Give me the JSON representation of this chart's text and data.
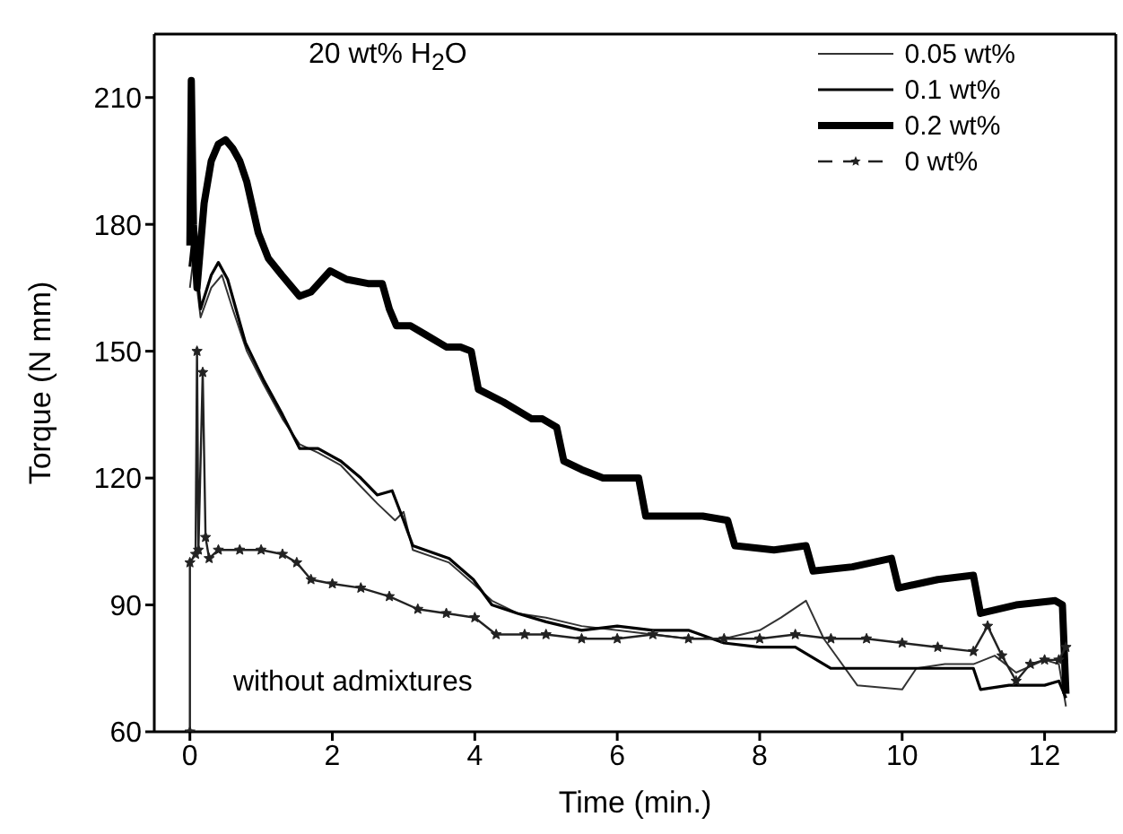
{
  "chart_data": {
    "type": "line",
    "xlabel": "Time (min.)",
    "ylabel": "Torque (N mm)",
    "xlim": [
      -0.5,
      13
    ],
    "xticks": [
      0,
      2,
      4,
      6,
      8,
      10,
      12
    ],
    "ylim": [
      60,
      225
    ],
    "yticks": [
      60,
      90,
      120,
      150,
      180,
      210
    ],
    "grid": false,
    "legend": "top right",
    "annotations": [
      "20 wt% H$_{2}$O",
      "without admixtures"
    ],
    "series": [
      {
        "name": "0.05 wt%",
        "color": "#333333",
        "marker": "none",
        "x": [
          0,
          0.05,
          0.15,
          0.3,
          0.45,
          0.6,
          0.8,
          1.04,
          1.3,
          1.54,
          1.8,
          2.12,
          2.4,
          2.63,
          2.88,
          3.0,
          3.13,
          3.64,
          3.98,
          4.24,
          4.6,
          5.0,
          5.5,
          6.0,
          6.5,
          7.0,
          7.5,
          8.0,
          8.3,
          8.65,
          8.9,
          9.37,
          10.0,
          10.2,
          10.6,
          11.0,
          11.3,
          11.6,
          12.0,
          12.2,
          12.3
        ],
        "values": [
          165,
          172,
          158,
          165,
          168,
          160,
          150,
          142,
          134,
          128,
          126,
          123,
          118,
          114,
          110,
          112,
          103,
          100,
          95,
          91,
          88,
          87,
          85,
          84,
          83,
          82,
          82,
          84,
          87,
          91,
          82,
          71,
          70,
          75,
          76,
          76,
          78,
          74,
          77,
          76,
          66
        ]
      },
      {
        "name": "0.1 wt%",
        "color": "#000000",
        "marker": "none",
        "x": [
          0,
          0.05,
          0.15,
          0.3,
          0.4,
          0.53,
          0.78,
          1.04,
          1.3,
          1.54,
          1.8,
          2.12,
          2.4,
          2.63,
          2.84,
          3.0,
          3.13,
          3.64,
          3.98,
          4.24,
          4.6,
          5.0,
          5.5,
          6.0,
          6.5,
          7.0,
          7.5,
          8.0,
          8.5,
          9.0,
          9.5,
          10.0,
          10.5,
          11.0,
          11.1,
          11.5,
          12.0,
          12.2,
          12.3
        ],
        "values": [
          170,
          178,
          160,
          168,
          171,
          167,
          152,
          143,
          135,
          127,
          127,
          124,
          120,
          116,
          117,
          110,
          104,
          101,
          96,
          90,
          88,
          86,
          84,
          85,
          84,
          84,
          81,
          80,
          80,
          75,
          75,
          75,
          75,
          75,
          70,
          71,
          71,
          72,
          68
        ]
      },
      {
        "name": "0.2 wt%",
        "color": "#000000",
        "marker": "none",
        "x": [
          0,
          0.02,
          0.05,
          0.1,
          0.2,
          0.3,
          0.4,
          0.5,
          0.6,
          0.7,
          0.8,
          0.96,
          1.1,
          1.29,
          1.54,
          1.7,
          1.97,
          2.2,
          2.5,
          2.7,
          2.8,
          2.9,
          3.1,
          3.3,
          3.6,
          3.8,
          3.95,
          4.05,
          4.4,
          4.8,
          4.95,
          5.15,
          5.25,
          5.5,
          5.8,
          6.3,
          6.4,
          6.8,
          7.2,
          7.55,
          7.65,
          8.2,
          8.65,
          8.75,
          9.3,
          9.85,
          9.95,
          10.5,
          11.0,
          11.1,
          11.6,
          12.15,
          12.25,
          12.3
        ],
        "values": [
          175,
          214,
          180,
          165,
          185,
          195,
          199,
          200,
          198,
          195,
          190,
          178,
          172,
          168,
          163,
          164,
          169,
          167,
          166,
          166,
          160,
          156,
          156,
          154,
          151,
          151,
          150,
          141,
          138,
          134,
          134,
          132,
          124,
          122,
          120,
          120,
          111,
          111,
          111,
          110,
          104,
          103,
          104,
          98,
          99,
          101,
          94,
          96,
          97,
          88,
          90,
          91,
          90,
          69
        ]
      },
      {
        "name": "0 wt%",
        "color": "#222222",
        "marker": "star",
        "x": [
          0,
          0,
          0.08,
          0.1,
          0.12,
          0.18,
          0.22,
          0.27,
          0.4,
          0.7,
          1.0,
          1.3,
          1.5,
          1.7,
          2.0,
          2.4,
          2.8,
          3.2,
          3.6,
          4.0,
          4.3,
          4.7,
          5.0,
          5.5,
          6.0,
          6.5,
          7.0,
          7.5,
          8.0,
          8.5,
          9.0,
          9.5,
          10.0,
          10.5,
          11.0,
          11.2,
          11.4,
          11.6,
          11.8,
          12.0,
          12.2,
          12.3
        ],
        "values": [
          60,
          100,
          102,
          150,
          103,
          145,
          106,
          101,
          103,
          103,
          103,
          102,
          100,
          96,
          95,
          94,
          92,
          89,
          88,
          87,
          83,
          83,
          83,
          82,
          82,
          83,
          82,
          82,
          82,
          83,
          82,
          82,
          81,
          80,
          79,
          85,
          78,
          72,
          76,
          77,
          77,
          80
        ]
      }
    ]
  }
}
